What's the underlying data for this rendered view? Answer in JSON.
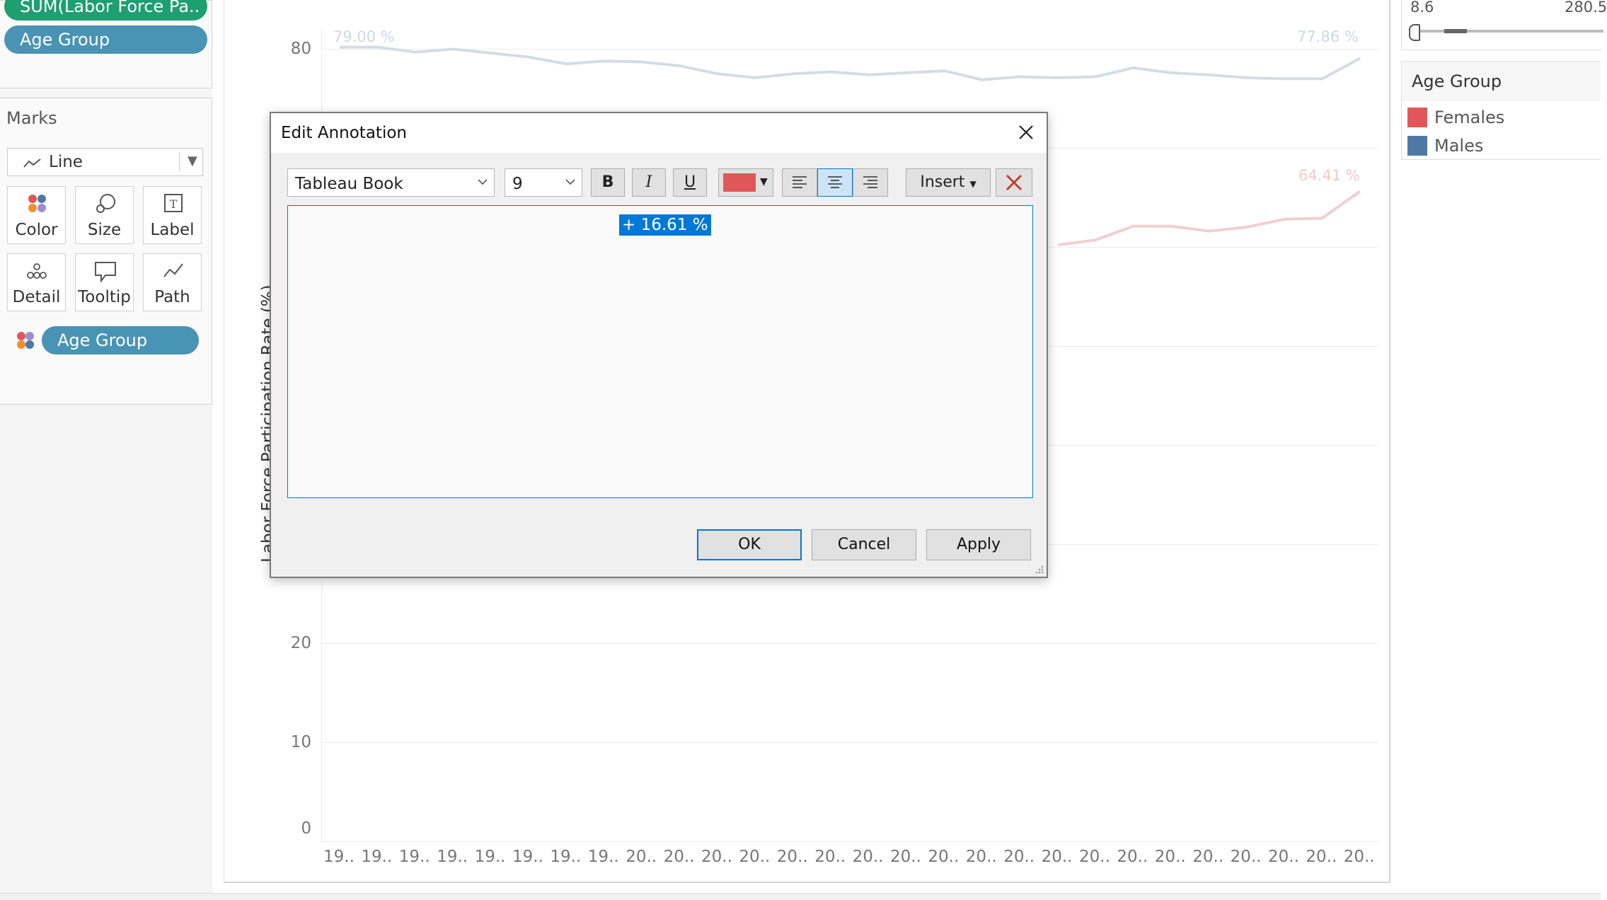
{
  "shelves": {
    "row_pills": [
      "SUM(Labor Force Pa..",
      "Age Group"
    ]
  },
  "marks": {
    "title": "Marks",
    "mark_type": "Line",
    "buttons": [
      "Color",
      "Size",
      "Label",
      "Detail",
      "Tooltip",
      "Path"
    ],
    "color_pill": "Age Group"
  },
  "chart": {
    "y_axis_label": "Labor Force Participation Rate (%)",
    "y_ticks": [
      "80",
      "20",
      "10",
      "0"
    ],
    "x_ticks": [
      "19..",
      "19..",
      "19..",
      "19..",
      "19..",
      "19..",
      "19..",
      "19..",
      "20..",
      "20..",
      "20..",
      "20..",
      "20..",
      "20..",
      "20..",
      "20..",
      "20..",
      "20..",
      "20..",
      "20..",
      "20..",
      "20..",
      "20..",
      "20..",
      "20..",
      "20..",
      "20..",
      "20.."
    ],
    "annotations": {
      "males_start": "79.00 %",
      "males_end": "77.86 %",
      "females_end": "64.41 %"
    }
  },
  "chart_data": {
    "type": "line",
    "ylabel": "Labor Force Participation Rate (%)",
    "ylim": [
      0,
      85
    ],
    "x_count": 28,
    "series": [
      {
        "name": "Males",
        "color": "#4e79a7",
        "values": [
          79.0,
          79.0,
          78.5,
          78.8,
          78.4,
          78.0,
          77.3,
          77.6,
          77.5,
          77.1,
          76.3,
          75.9,
          76.3,
          76.5,
          76.2,
          76.4,
          76.6,
          75.7,
          76.0,
          75.9,
          76.0,
          76.9,
          76.4,
          76.2,
          75.9,
          75.8,
          75.8,
          77.86
        ]
      },
      {
        "name": "Females",
        "color": "#e15759",
        "values": [
          null,
          null,
          null,
          null,
          null,
          null,
          null,
          null,
          null,
          null,
          null,
          null,
          null,
          null,
          null,
          null,
          null,
          null,
          null,
          59.0,
          59.5,
          60.9,
          60.9,
          60.4,
          60.8,
          61.6,
          61.7,
          64.41
        ]
      }
    ]
  },
  "legend": {
    "title": "Age Group",
    "items": [
      {
        "label": "Females",
        "color": "#e15759"
      },
      {
        "label": "Males",
        "color": "#4e79a7"
      }
    ]
  },
  "size_slider": {
    "min": "8.6",
    "max": "280.5"
  },
  "dialog": {
    "title": "Edit Annotation",
    "font_family": "Tableau Book",
    "font_size": "9",
    "bold": "B",
    "italic": "I",
    "underline": "U",
    "text_color": "#e15759",
    "insert_label": "Insert",
    "content": "+ 16.61 %",
    "ok": "OK",
    "cancel": "Cancel",
    "apply": "Apply"
  }
}
